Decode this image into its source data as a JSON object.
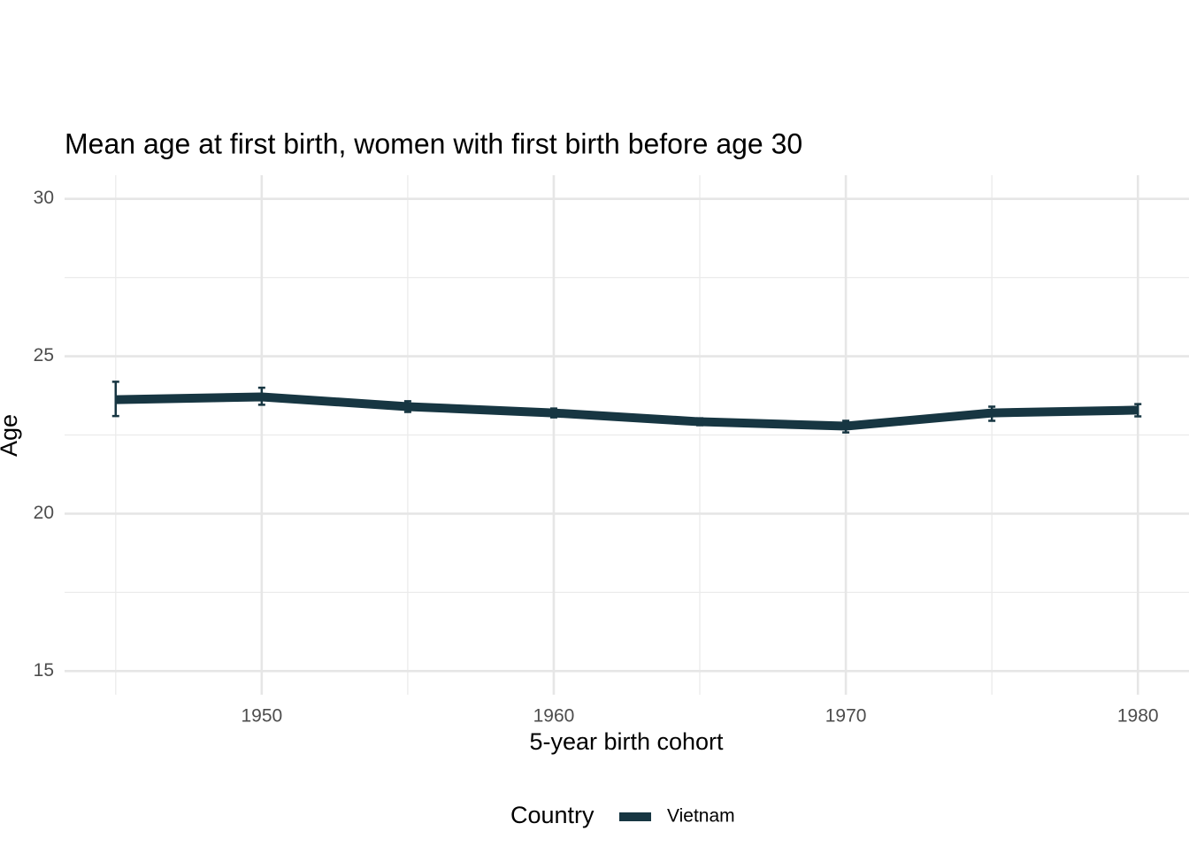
{
  "chart_data": {
    "type": "line",
    "title": "Mean age at first birth, women with first birth before age 30",
    "x_label": "5-year birth cohort",
    "y_label": "Age",
    "x": [
      1945,
      1950,
      1955,
      1960,
      1965,
      1970,
      1975,
      1980
    ],
    "series": [
      {
        "name": "Vietnam",
        "color": "#173642",
        "values": [
          23.62,
          23.71,
          23.4,
          23.2,
          22.92,
          22.78,
          23.2,
          23.29
        ],
        "lower": [
          23.1,
          23.46,
          23.23,
          23.06,
          22.81,
          22.58,
          22.95,
          23.09
        ],
        "upper": [
          24.19,
          24.0,
          23.57,
          23.34,
          23.03,
          22.95,
          23.4,
          23.48
        ]
      }
    ],
    "xlim": [
      1943.25,
      1981.75
    ],
    "xticks": [
      1950,
      1960,
      1970,
      1980
    ],
    "x_minor_ticks": [
      1945,
      1955,
      1965,
      1975
    ],
    "ylim": [
      14.25,
      30.75
    ],
    "yticks": [
      15,
      20,
      25,
      30
    ],
    "y_minor_ticks": [
      17.5,
      22.5,
      27.5
    ],
    "grid": true,
    "legend_title": "Country",
    "legend_position": "bottom"
  }
}
